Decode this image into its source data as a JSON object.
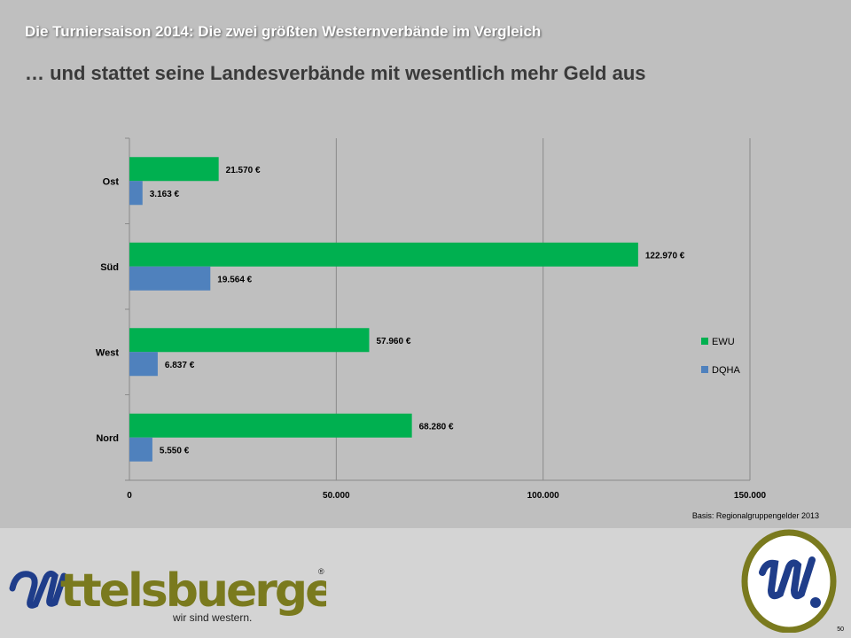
{
  "header": {
    "supertitle": "Die Turniersaison 2014: Die zwei größten Westernverbände im Vergleich",
    "title": "… und stattet seine Landesverbände mit wesentlich mehr Geld aus"
  },
  "chart_data": {
    "type": "bar",
    "orientation": "horizontal",
    "categories": [
      "Ost",
      "Süd",
      "West",
      "Nord"
    ],
    "series": [
      {
        "name": "EWU",
        "values": [
          21570,
          122970,
          57960,
          68280
        ],
        "labels": [
          "21.570 €",
          "122.970 €",
          "57.960 €",
          "68.280 €"
        ],
        "color": "#00b050"
      },
      {
        "name": "DQHA",
        "values": [
          3163,
          19564,
          6837,
          5550
        ],
        "labels": [
          "3.163 €",
          "19.564 €",
          "6.837 €",
          "5.550 €"
        ],
        "color": "#4f81bd"
      }
    ],
    "xlim": [
      0,
      150000
    ],
    "xticks": [
      0,
      50000,
      100000,
      150000
    ],
    "xtick_labels": [
      "0",
      "50.000",
      "100.000",
      "150.000"
    ],
    "grid": "vertical",
    "legend_position": "right"
  },
  "source": "Basis: Regionalgruppengelder 2013",
  "footer": {
    "brand": "ttelsbuerger",
    "tagline": "wir sind western.",
    "registered": "®",
    "page_number": "50"
  },
  "colors": {
    "brand_blue": "#1f3d8a",
    "brand_olive": "#7a7a1e"
  }
}
